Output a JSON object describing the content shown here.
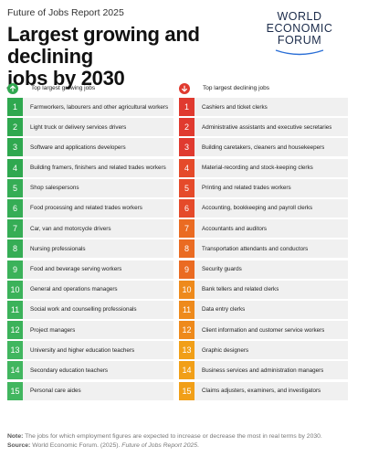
{
  "header": {
    "report": "Future of Jobs Report 2025",
    "title_line1": "Largest growing and declining",
    "title_line2": "jobs by 2030"
  },
  "logo": {
    "line1": "WORLD",
    "line2": "ECONOMIC",
    "line3": "FORUM"
  },
  "colors": {
    "growing_shades": [
      "#2fa84f",
      "#35ad55",
      "#3bb25a",
      "#41b65f"
    ],
    "declining_shades": [
      "#e03a2f",
      "#e54a2a",
      "#ea6b22",
      "#ee8a1c",
      "#f19f18"
    ],
    "row_bg": "#f0f0f0"
  },
  "growing": {
    "heading": "Top largest growing jobs",
    "icon": "arrow-up-icon",
    "items": [
      {
        "rank": "1",
        "label": "Farmworkers, labourers and other agricultural workers"
      },
      {
        "rank": "2",
        "label": "Light truck or delivery services drivers"
      },
      {
        "rank": "3",
        "label": "Software and applications developers"
      },
      {
        "rank": "4",
        "label": "Building framers, finishers and related trades workers"
      },
      {
        "rank": "5",
        "label": "Shop salespersons"
      },
      {
        "rank": "6",
        "label": "Food processing and related trades workers"
      },
      {
        "rank": "7",
        "label": "Car, van and motorcycle drivers"
      },
      {
        "rank": "8",
        "label": "Nursing professionals"
      },
      {
        "rank": "9",
        "label": "Food and beverage serving workers"
      },
      {
        "rank": "10",
        "label": "General and operations managers"
      },
      {
        "rank": "11",
        "label": "Social work and counselling professionals"
      },
      {
        "rank": "12",
        "label": "Project managers"
      },
      {
        "rank": "13",
        "label": "University and higher education teachers"
      },
      {
        "rank": "14",
        "label": "Secondary education teachers"
      },
      {
        "rank": "15",
        "label": "Personal care aides"
      }
    ]
  },
  "declining": {
    "heading": "Top largest declining jobs",
    "icon": "arrow-down-icon",
    "items": [
      {
        "rank": "1",
        "label": "Cashiers and ticket clerks"
      },
      {
        "rank": "2",
        "label": "Administrative assistants and executive secretaries"
      },
      {
        "rank": "3",
        "label": "Building caretakers, cleaners and housekeepers"
      },
      {
        "rank": "4",
        "label": "Material-recording and stock-keeping clerks"
      },
      {
        "rank": "5",
        "label": "Printing and related trades workers"
      },
      {
        "rank": "6",
        "label": "Accounting, bookkeeping and payroll clerks"
      },
      {
        "rank": "7",
        "label": "Accountants and auditors"
      },
      {
        "rank": "8",
        "label": "Transportation attendants and conductors"
      },
      {
        "rank": "9",
        "label": "Security guards"
      },
      {
        "rank": "10",
        "label": "Bank tellers and related clerks"
      },
      {
        "rank": "11",
        "label": "Data entry clerks"
      },
      {
        "rank": "12",
        "label": "Client information and customer service workers"
      },
      {
        "rank": "13",
        "label": "Graphic designers"
      },
      {
        "rank": "14",
        "label": "Business services and administration managers"
      },
      {
        "rank": "15",
        "label": "Claims adjusters, examiners, and investigators"
      }
    ]
  },
  "footer": {
    "note_label": "Note:",
    "note_text": "The jobs for which employment figures are expected to increase or decrease the most in real terms by 2030.",
    "source_label": "Source:",
    "source_text": "World Economic Forum. (2025).",
    "source_title": "Future of Jobs Report 2025",
    "source_end": "."
  }
}
